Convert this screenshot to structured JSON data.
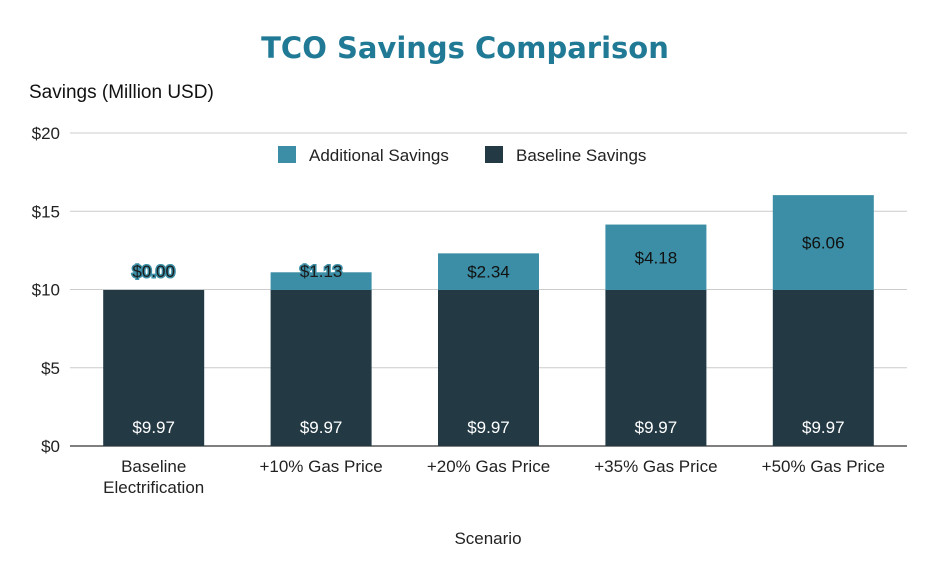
{
  "chart_data": {
    "type": "bar",
    "stacked": true,
    "title": "TCO Savings Comparison",
    "xlabel": "Scenario",
    "ylabel": "Savings (Million USD)",
    "ylim": [
      0,
      20
    ],
    "yticks": [
      0,
      5,
      10,
      15,
      20
    ],
    "ytick_labels": [
      "$0",
      "$5",
      "$10",
      "$15",
      "$20"
    ],
    "grid": true,
    "legend_position": "top",
    "categories": [
      [
        "Baseline",
        "Electrification"
      ],
      [
        "+10% Gas Price"
      ],
      [
        "+20% Gas Price"
      ],
      [
        "+35% Gas Price"
      ],
      [
        "+50% Gas Price"
      ]
    ],
    "series": [
      {
        "name": "Baseline Savings",
        "color": "#233a45",
        "values": [
          9.97,
          9.97,
          9.97,
          9.97,
          9.97
        ],
        "labels": [
          "$9.97",
          "$9.97",
          "$9.97",
          "$9.97",
          "$9.97"
        ]
      },
      {
        "name": "Additional Savings",
        "color": "#3b8ea5",
        "values": [
          0.0,
          1.13,
          2.34,
          4.18,
          6.06
        ],
        "labels": [
          "$0.00",
          "$1.13",
          "$2.34",
          "$4.18",
          "$6.06"
        ]
      }
    ],
    "legend_order": [
      "Additional Savings",
      "Baseline Savings"
    ],
    "colors": {
      "title": "#217a95",
      "grid": "#cccccc",
      "axis": "#333333"
    }
  }
}
